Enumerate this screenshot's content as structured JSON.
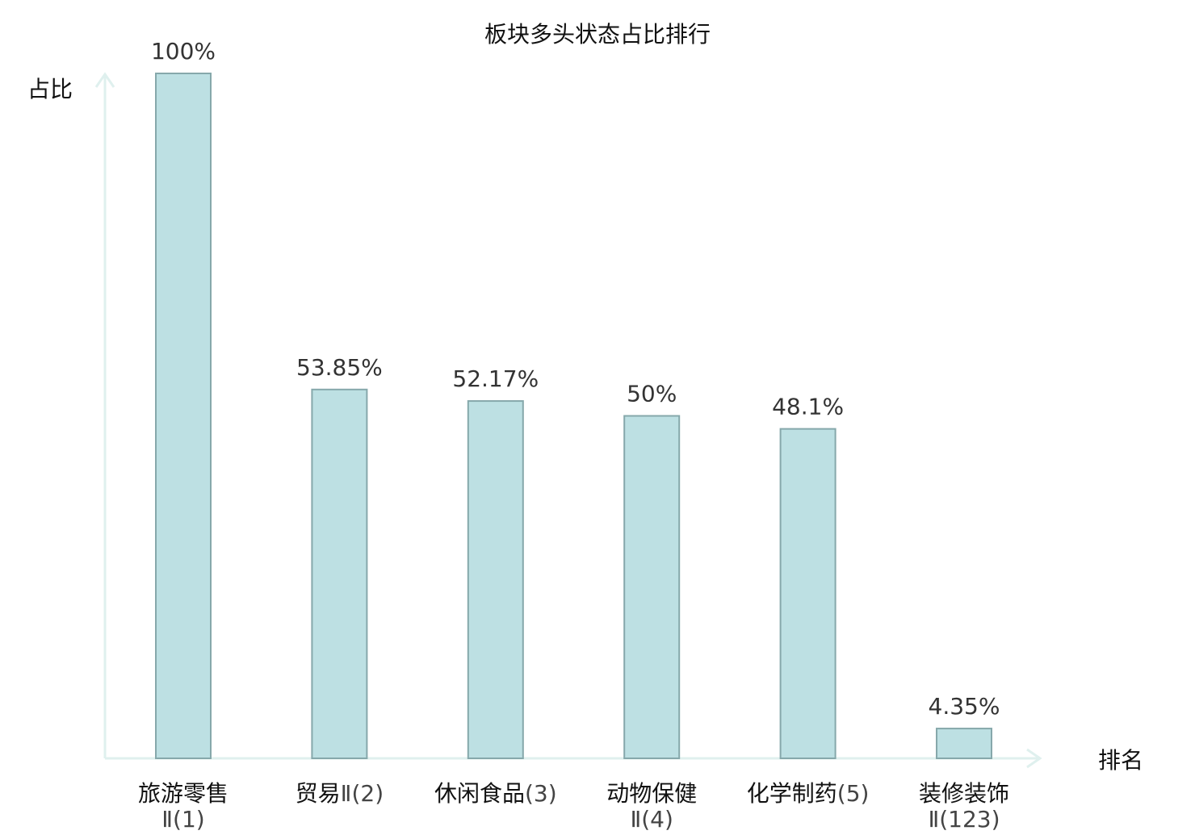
{
  "chart_data": {
    "type": "bar",
    "title": "板块多头状态占比排行",
    "ylabel": "占比",
    "xlabel": "排名",
    "ylim": [
      0,
      100
    ],
    "grid": false,
    "categories": [
      {
        "name": "旅游零售",
        "rank": "Ⅱ(1)",
        "value": 100,
        "label": "100%",
        "highlight": false
      },
      {
        "name": "贸易",
        "rank": "Ⅱ(2)",
        "value": 53.85,
        "label": "53.85%",
        "highlight": false
      },
      {
        "name": "休闲食品",
        "rank": "(3)",
        "value": 52.17,
        "label": "52.17%",
        "highlight": false
      },
      {
        "name": "动物保健",
        "rank": "Ⅱ(4)",
        "value": 50,
        "label": "50%",
        "highlight": false
      },
      {
        "name": "化学制药",
        "rank": "(5)",
        "value": 48.1,
        "label": "48.1%",
        "highlight": false
      },
      {
        "name": "装修装饰",
        "rank": "Ⅱ(123)",
        "value": 4.35,
        "label": "4.35%",
        "highlight": true
      }
    ],
    "colors": {
      "bar_fill": "#bde0e3",
      "bar_stroke": "#86a8ab",
      "axis": "#dff0ee",
      "highlight_text": "#e0201c"
    }
  }
}
